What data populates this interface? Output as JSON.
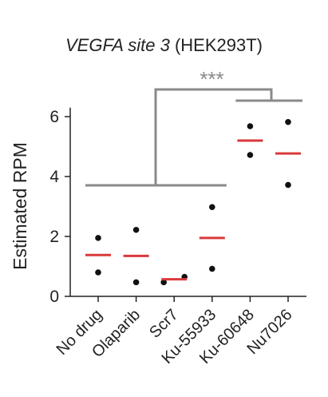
{
  "chart_data": {
    "type": "scatter",
    "title_italic": "VEGFA site 3",
    "title_rest": "(HEK293T)",
    "xlabel": "",
    "ylabel": "Estimated RPM",
    "ylim": [
      0,
      6.3
    ],
    "yticks": [
      0,
      2,
      4,
      6
    ],
    "categories": [
      "No drug",
      "Olaparib",
      "Scr7",
      "Ku-55933",
      "Ku-60648",
      "Nu7026"
    ],
    "points": [
      [
        1.95,
        0.8
      ],
      [
        2.22,
        0.47
      ],
      [
        0.47,
        0.65
      ],
      [
        2.98,
        0.92
      ],
      [
        5.68,
        4.72
      ],
      [
        5.82,
        3.72
      ]
    ],
    "means": [
      1.38,
      1.35,
      0.57,
      1.95,
      5.2,
      4.77
    ],
    "significance_label": "***",
    "groups": {
      "left": [
        0,
        1,
        2,
        3
      ],
      "right": [
        4,
        5
      ]
    },
    "colors": {
      "point": "#111111",
      "mean": "#d9393b",
      "bracket": "#8a8a8a",
      "axis": "#222222",
      "text": "#222222"
    },
    "grid": false,
    "legend": "none"
  }
}
